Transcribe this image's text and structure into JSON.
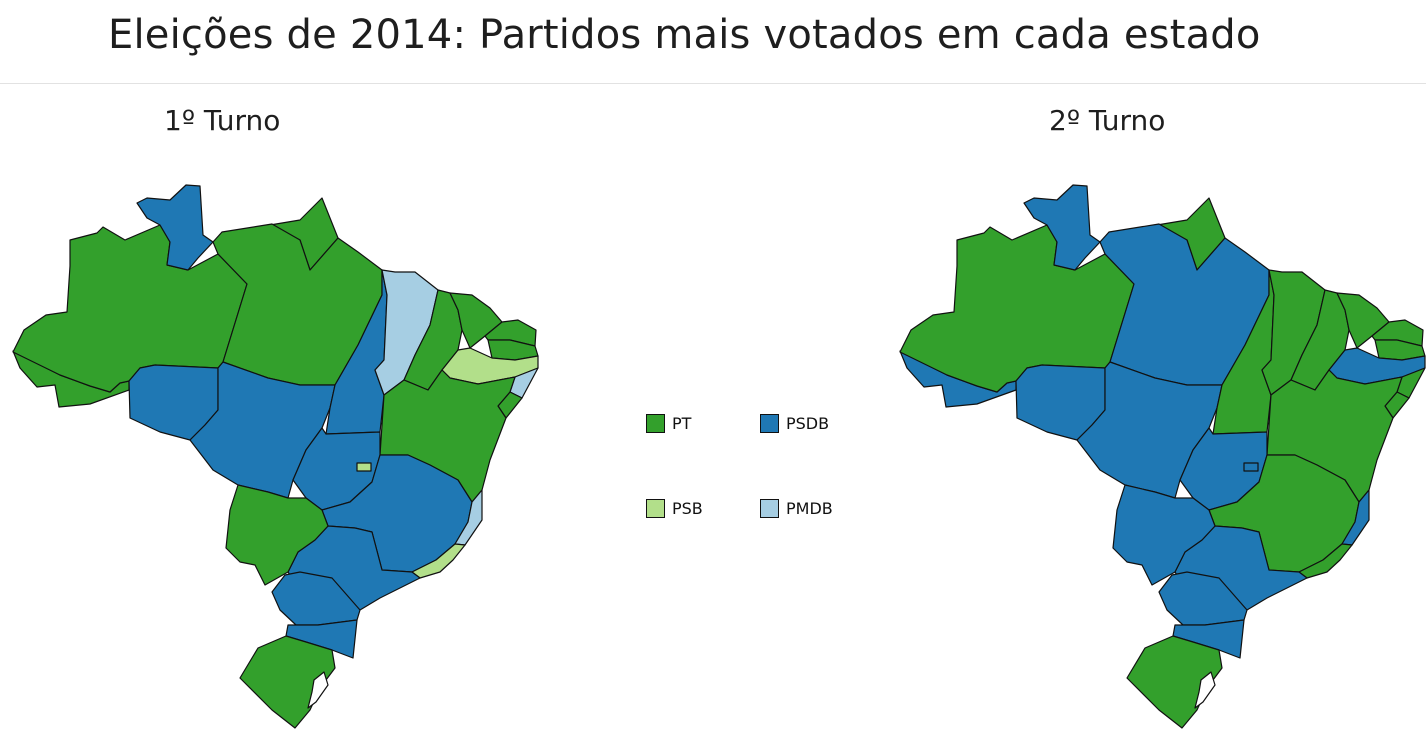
{
  "title": "Eleições de 2014: Partidos mais votados em cada estado",
  "maps": {
    "first_round": {
      "title": "1º Turno",
      "states": {
        "AC": "PT",
        "AM": "PT",
        "RR": "PSDB",
        "PA": "PT",
        "AP": "PT",
        "RO": "PSDB",
        "MT": "PSDB",
        "TO": "PSDB",
        "MA": "PMDB",
        "PI": "PT",
        "CE": "PT",
        "RN": "PT",
        "PB": "PT",
        "PE": "PSB",
        "AL": "PMDB",
        "SE": "PT",
        "BA": "PT",
        "GO": "PSDB",
        "DF": "PSB",
        "MG": "PSDB",
        "ES": "PMDB",
        "RJ": "PSB",
        "SP": "PSDB",
        "MS": "PT",
        "PR": "PSDB",
        "SC": "PSDB",
        "RS": "PT"
      }
    },
    "second_round": {
      "title": "2º Turno",
      "states": {
        "AC": "PSDB",
        "AM": "PT",
        "RR": "PSDB",
        "PA": "PSDB",
        "AP": "PT",
        "RO": "PSDB",
        "MT": "PSDB",
        "TO": "PT",
        "MA": "PT",
        "PI": "PT",
        "CE": "PT",
        "RN": "PT",
        "PB": "PT",
        "PE": "PSDB",
        "AL": "PT",
        "SE": "PT",
        "BA": "PT",
        "GO": "PSDB",
        "DF": "PSDB",
        "MG": "PT",
        "ES": "PSDB",
        "RJ": "PT",
        "SP": "PSDB",
        "MS": "PSDB",
        "PR": "PSDB",
        "SC": "PSDB",
        "RS": "PT"
      }
    }
  },
  "legend": [
    {
      "key": "PT",
      "label": "PT"
    },
    {
      "key": "PSDB",
      "label": "PSDB"
    },
    {
      "key": "PSB",
      "label": "PSB"
    },
    {
      "key": "PMDB",
      "label": "PMDB"
    }
  ],
  "colors": {
    "PT": "#33a02c",
    "PSDB": "#1f78b4",
    "PSB": "#b2df8a",
    "PMDB": "#a6cee3"
  }
}
